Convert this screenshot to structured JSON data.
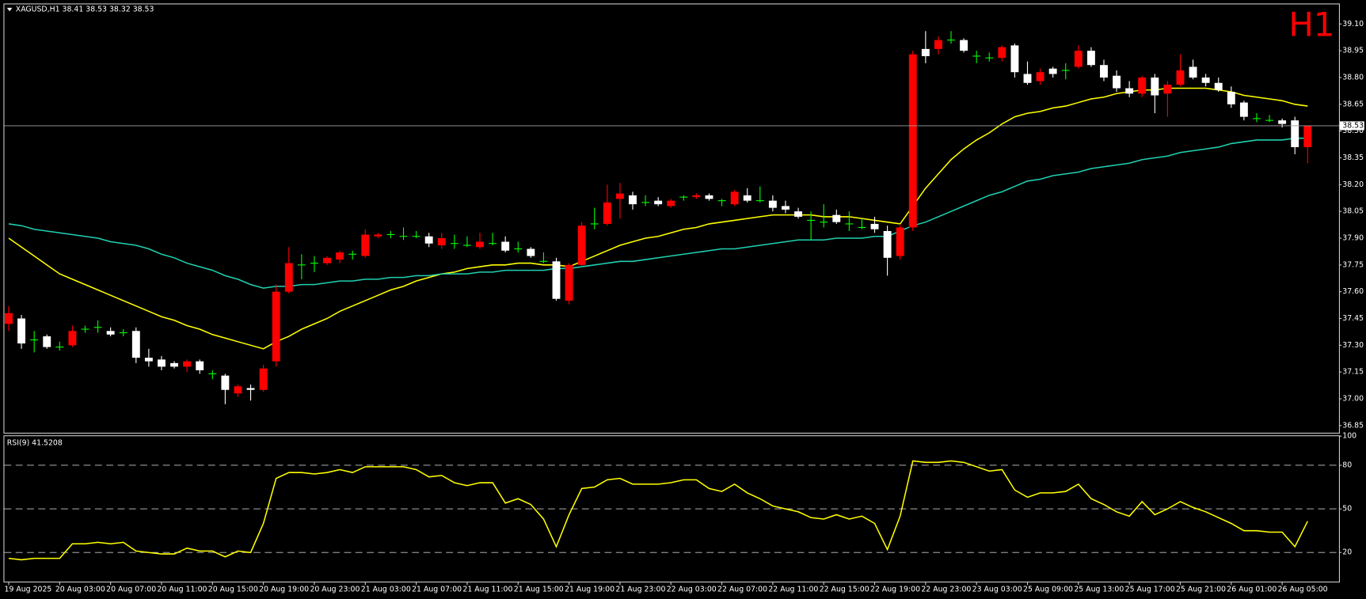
{
  "chart_data": [
    {
      "type": "candlestick",
      "title": "XAGUSD,H1  38.41 38.53 38.32 38.53",
      "timeframe_label": "H1",
      "categories": [
        "19 Aug 2025",
        null,
        null,
        null,
        "20 Aug 03:00",
        null,
        null,
        null,
        "20 Aug 07:00",
        null,
        null,
        null,
        "20 Aug 11:00",
        null,
        null,
        null,
        "20 Aug 15:00",
        null,
        null,
        null,
        "20 Aug 19:00",
        null,
        null,
        null,
        "20 Aug 23:00",
        null,
        null,
        null,
        "21 Aug 03:00",
        null,
        null,
        null,
        "21 Aug 07:00",
        null,
        null,
        null,
        "21 Aug 11:00",
        null,
        null,
        null,
        "21 Aug 15:00",
        null,
        null,
        null,
        "21 Aug 19:00",
        null,
        null,
        null,
        "21 Aug 23:00",
        null,
        null,
        null,
        "22 Aug 03:00",
        null,
        null,
        null,
        "22 Aug 07:00",
        null,
        null,
        null,
        "22 Aug 11:00",
        null,
        null,
        null,
        "22 Aug 15:00",
        null,
        null,
        null,
        "22 Aug 19:00",
        null,
        null,
        null,
        "22 Aug 23:00",
        null,
        null,
        null,
        "23 Aug 03:00",
        null,
        null,
        null,
        "25 Aug 09:00",
        null,
        null,
        null,
        "25 Aug 13:00",
        null,
        null,
        null,
        "25 Aug 17:00",
        null,
        null,
        null,
        "25 Aug 21:00",
        null,
        null,
        null,
        "26 Aug 01:00",
        null,
        null,
        null,
        "26 Aug 05:00",
        null,
        null
      ],
      "open": [
        37.42,
        37.45,
        37.33,
        37.35,
        37.29,
        37.3,
        37.39,
        37.4,
        37.38,
        37.37,
        37.38,
        37.23,
        37.22,
        37.2,
        37.18,
        37.21,
        37.14,
        37.13,
        37.03,
        37.06,
        37.05,
        37.21,
        37.6,
        37.75,
        37.76,
        37.76,
        37.78,
        37.81,
        37.8,
        37.91,
        37.92,
        37.91,
        37.91,
        37.91,
        37.86,
        37.87,
        37.86,
        37.85,
        37.87,
        37.88,
        37.84,
        37.84,
        37.77,
        37.77,
        37.55,
        37.75,
        37.98,
        37.98,
        38.12,
        38.14,
        38.1,
        38.11,
        38.08,
        38.13,
        38.13,
        38.14,
        38.11,
        38.09,
        38.14,
        38.11,
        38.11,
        38.08,
        38.05,
        38.0,
        37.99,
        38.03,
        37.98,
        37.96,
        37.98,
        37.94,
        37.8,
        37.96,
        38.96,
        38.96,
        39.01,
        39.01,
        38.92,
        38.91,
        38.91,
        38.98,
        38.82,
        38.78,
        38.85,
        38.84,
        38.86,
        38.95,
        38.87,
        38.81,
        38.74,
        38.71,
        38.8,
        38.71,
        38.76,
        38.86,
        38.8,
        38.77,
        38.72,
        38.66,
        38.57,
        38.56,
        38.56,
        38.56,
        38.41
      ],
      "high": [
        37.52,
        37.47,
        37.38,
        37.36,
        37.32,
        37.41,
        37.41,
        37.44,
        37.4,
        37.39,
        37.4,
        37.28,
        37.24,
        37.21,
        37.22,
        37.22,
        37.16,
        37.14,
        37.08,
        37.08,
        37.19,
        37.64,
        37.85,
        37.81,
        37.8,
        37.8,
        37.83,
        37.83,
        37.95,
        37.93,
        37.94,
        37.96,
        37.94,
        37.93,
        37.93,
        37.92,
        37.91,
        37.93,
        37.93,
        37.91,
        37.88,
        37.85,
        37.82,
        37.79,
        37.76,
        37.99,
        38.07,
        38.2,
        38.21,
        38.16,
        38.14,
        38.13,
        38.12,
        38.14,
        38.15,
        38.15,
        38.12,
        38.17,
        38.18,
        38.19,
        38.14,
        38.11,
        38.07,
        38.05,
        38.09,
        38.06,
        38.05,
        38.01,
        38.02,
        37.97,
        37.98,
        38.95,
        39.06,
        39.03,
        39.06,
        39.02,
        38.95,
        38.94,
        38.98,
        38.99,
        38.89,
        38.85,
        38.86,
        38.88,
        38.98,
        38.97,
        38.9,
        38.84,
        38.78,
        38.81,
        38.82,
        38.78,
        38.93,
        38.9,
        38.82,
        38.8,
        38.75,
        38.67,
        38.6,
        38.59,
        38.57,
        38.58,
        38.53
      ],
      "low": [
        37.38,
        37.28,
        37.26,
        37.28,
        37.27,
        37.29,
        37.37,
        37.37,
        37.35,
        37.35,
        37.2,
        37.18,
        37.16,
        37.17,
        37.15,
        37.14,
        37.11,
        36.97,
        37.01,
        36.99,
        37.04,
        37.18,
        37.59,
        37.67,
        37.71,
        37.75,
        37.76,
        37.78,
        37.79,
        37.9,
        37.9,
        37.89,
        37.9,
        37.85,
        37.84,
        37.84,
        37.85,
        37.84,
        37.86,
        37.82,
        37.82,
        37.79,
        37.76,
        37.55,
        37.53,
        37.74,
        37.95,
        37.97,
        38.01,
        38.06,
        38.08,
        38.08,
        38.07,
        38.11,
        38.12,
        38.11,
        38.08,
        38.08,
        38.1,
        38.1,
        38.05,
        38.04,
        38.01,
        37.89,
        37.96,
        37.98,
        37.94,
        37.95,
        37.93,
        37.69,
        37.78,
        37.94,
        38.88,
        38.93,
        38.99,
        38.94,
        38.88,
        38.89,
        38.89,
        38.8,
        38.76,
        38.76,
        38.8,
        38.79,
        38.85,
        38.86,
        38.78,
        38.72,
        38.69,
        38.69,
        38.6,
        38.58,
        38.75,
        38.79,
        38.75,
        38.72,
        38.63,
        38.56,
        38.55,
        38.55,
        38.52,
        38.37,
        38.32
      ],
      "close": [
        37.48,
        37.31,
        37.33,
        37.29,
        37.29,
        37.38,
        37.39,
        37.4,
        37.36,
        37.37,
        37.23,
        37.21,
        37.18,
        37.18,
        37.21,
        37.16,
        37.14,
        37.05,
        37.07,
        37.05,
        37.17,
        37.6,
        37.76,
        37.75,
        37.76,
        37.79,
        37.82,
        37.81,
        37.92,
        37.92,
        37.92,
        37.91,
        37.91,
        37.87,
        37.9,
        37.87,
        37.86,
        37.88,
        37.87,
        37.83,
        37.84,
        37.8,
        37.77,
        37.56,
        37.75,
        37.97,
        37.98,
        38.1,
        38.15,
        38.09,
        38.1,
        38.09,
        38.11,
        38.13,
        38.14,
        38.12,
        38.11,
        38.16,
        38.11,
        38.11,
        38.07,
        38.06,
        38.02,
        38.0,
        37.99,
        37.99,
        37.98,
        37.96,
        37.95,
        37.79,
        37.96,
        38.93,
        38.92,
        39.01,
        39.01,
        38.95,
        38.92,
        38.91,
        38.97,
        38.83,
        38.77,
        38.83,
        38.82,
        38.84,
        38.95,
        38.87,
        38.8,
        38.74,
        38.71,
        38.8,
        38.7,
        38.76,
        38.84,
        38.8,
        38.77,
        38.73,
        38.65,
        38.58,
        38.57,
        38.56,
        38.54,
        38.41,
        38.53
      ],
      "up_color": "#ff0000",
      "down_color": "#ffffff",
      "doji_color": "#00ff00",
      "lines": [
        {
          "color": "#ffff00",
          "values": [
            37.9,
            37.85,
            37.8,
            37.75,
            37.7,
            37.67,
            37.64,
            37.61,
            37.58,
            37.55,
            37.52,
            37.49,
            37.46,
            37.44,
            37.41,
            37.39,
            37.36,
            37.34,
            37.32,
            37.3,
            37.28,
            37.32,
            37.35,
            37.39,
            37.42,
            37.45,
            37.49,
            37.52,
            37.55,
            37.58,
            37.61,
            37.63,
            37.66,
            37.68,
            37.7,
            37.71,
            37.73,
            37.74,
            37.75,
            37.75,
            37.76,
            37.76,
            37.75,
            37.75,
            37.74,
            37.77,
            37.8,
            37.83,
            37.86,
            37.88,
            37.9,
            37.91,
            37.93,
            37.95,
            37.96,
            37.98,
            37.99,
            38.0,
            38.01,
            38.02,
            38.03,
            38.03,
            38.03,
            38.03,
            38.02,
            38.02,
            38.02,
            38.01,
            38.0,
            37.99,
            37.98,
            38.08,
            38.18,
            38.26,
            38.34,
            38.4,
            38.45,
            38.49,
            38.54,
            38.58,
            38.6,
            38.61,
            38.63,
            38.64,
            38.66,
            38.68,
            38.69,
            38.71,
            38.72,
            38.73,
            38.73,
            38.74,
            38.74,
            38.74,
            38.74,
            38.73,
            38.72,
            38.7,
            38.69,
            38.68,
            38.67,
            38.65,
            38.64
          ]
        },
        {
          "color": "#20d0b0",
          "values": [
            37.98,
            37.97,
            37.95,
            37.94,
            37.93,
            37.92,
            37.91,
            37.9,
            37.88,
            37.87,
            37.86,
            37.84,
            37.81,
            37.79,
            37.76,
            37.74,
            37.72,
            37.69,
            37.67,
            37.64,
            37.62,
            37.63,
            37.63,
            37.64,
            37.64,
            37.65,
            37.66,
            37.66,
            37.67,
            37.67,
            37.68,
            37.68,
            37.69,
            37.69,
            37.7,
            37.7,
            37.7,
            37.71,
            37.71,
            37.72,
            37.72,
            37.72,
            37.72,
            37.73,
            37.73,
            37.74,
            37.75,
            37.76,
            37.77,
            37.77,
            37.78,
            37.79,
            37.8,
            37.81,
            37.82,
            37.83,
            37.84,
            37.84,
            37.85,
            37.86,
            37.87,
            37.88,
            37.89,
            37.89,
            37.89,
            37.9,
            37.9,
            37.9,
            37.91,
            37.91,
            37.94,
            37.97,
            37.99,
            38.02,
            38.05,
            38.08,
            38.11,
            38.14,
            38.16,
            38.19,
            38.22,
            38.23,
            38.25,
            38.26,
            38.27,
            38.29,
            38.3,
            38.31,
            38.32,
            38.34,
            38.35,
            38.36,
            38.38,
            38.39,
            38.4,
            38.41,
            38.43,
            38.44,
            38.45,
            38.45,
            38.45,
            38.46,
            38.46
          ]
        }
      ],
      "current_price": 38.53,
      "ylim": [
        36.81,
        39.21
      ],
      "yticks": [
        {
          "value": 39.1,
          "label": "39.10"
        },
        38.95,
        {
          "value": 38.8,
          "label": "38.80"
        },
        38.65,
        {
          "value": 38.5,
          "label": "38.50"
        },
        38.35,
        {
          "value": 38.2,
          "label": "38.20"
        },
        38.05,
        {
          "value": 37.9,
          "label": "37.90"
        },
        37.75,
        {
          "value": 37.6,
          "label": "37.60"
        },
        37.45,
        {
          "value": 37.3,
          "label": "37.30"
        },
        37.15,
        {
          "value": 37.0,
          "label": "37.00"
        },
        36.85
      ]
    },
    {
      "type": "line",
      "title": "RSI(9) 41.5208",
      "color": "#ffff00",
      "values": [
        16,
        15,
        16,
        16,
        16,
        26,
        26,
        27,
        26,
        27,
        21,
        20,
        19,
        19,
        23,
        21,
        21,
        17,
        21,
        20,
        40,
        71,
        75,
        75,
        74,
        75,
        77,
        75,
        79,
        79,
        79,
        79,
        77,
        72,
        73,
        68,
        66,
        68,
        68,
        54,
        57,
        53,
        43,
        24,
        46,
        64,
        65,
        70,
        71,
        67,
        67,
        67,
        68,
        70,
        70,
        64,
        62,
        67,
        61,
        57,
        52,
        50,
        48,
        44,
        43,
        46,
        43,
        45,
        40,
        22,
        45,
        83,
        82,
        82,
        83,
        82,
        79,
        76,
        77,
        63,
        58,
        61,
        61,
        62,
        67,
        57,
        53,
        48,
        45,
        55,
        46,
        50,
        55,
        51,
        48,
        44,
        40,
        35,
        35,
        34,
        34,
        24,
        41.5208
      ],
      "ylim": [
        0,
        100
      ],
      "yticks": [
        100,
        80,
        50,
        20
      ],
      "levels": [
        80,
        50,
        20
      ]
    }
  ]
}
